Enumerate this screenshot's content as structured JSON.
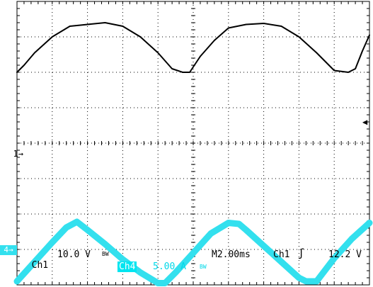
{
  "screen": {
    "background": "#ffffff",
    "grid_color": "#000000"
  },
  "ch1": {
    "marker": "1",
    "label": "Ch1",
    "scale": "10.0 V",
    "bw": "BW",
    "color": "#000000"
  },
  "ch4": {
    "marker": "4",
    "label": "Ch4",
    "scale": "5.00 A",
    "bw": "BW",
    "color": "#33e0ee"
  },
  "timebase": {
    "label": "M2.00ms"
  },
  "trigger": {
    "source": "Ch1",
    "slope_icon": "rising-edge-icon",
    "slope_glyph": "ʃ",
    "level": "12.2 V",
    "marker_icon": "trigger-level-arrow-icon"
  },
  "chart_data": {
    "type": "line",
    "grid": true,
    "xlim": [
      0,
      10
    ],
    "ylim": [
      0,
      8
    ],
    "series": [
      {
        "x": [
          0,
          0.2,
          0.5,
          1.0,
          1.5,
          2.0,
          2.5,
          3.0,
          3.5,
          4.0,
          4.4,
          4.7,
          4.9,
          5.0,
          5.2,
          5.6,
          6.0,
          6.5,
          7.0,
          7.5,
          8.0,
          8.5,
          9.0,
          9.4,
          9.6,
          9.8,
          10.0
        ],
        "y": [
          6.0,
          6.2,
          6.55,
          7.0,
          7.3,
          7.35,
          7.4,
          7.3,
          7.0,
          6.55,
          6.1,
          6.0,
          6.0,
          6.15,
          6.45,
          6.9,
          7.25,
          7.35,
          7.38,
          7.3,
          7.0,
          6.55,
          6.05,
          6.0,
          6.1,
          6.6,
          7.05
        ],
        "width": 2
      },
      {
        "x": [
          0,
          0.5,
          1.0,
          1.4,
          1.7,
          2.0,
          2.5,
          3.0,
          3.5,
          4.0,
          4.2,
          4.5,
          5.0,
          5.5,
          6.0,
          6.3,
          6.5,
          7.0,
          7.5,
          8.0,
          8.2,
          8.5,
          9.0,
          9.5,
          10.0
        ],
        "y": [
          0.1,
          0.65,
          1.2,
          1.62,
          1.78,
          1.55,
          1.15,
          0.72,
          0.35,
          0.05,
          0.05,
          0.35,
          0.9,
          1.45,
          1.75,
          1.72,
          1.55,
          1.1,
          0.65,
          0.2,
          0.1,
          0.1,
          0.75,
          1.3,
          1.75
        ],
        "width": 9
      }
    ]
  }
}
